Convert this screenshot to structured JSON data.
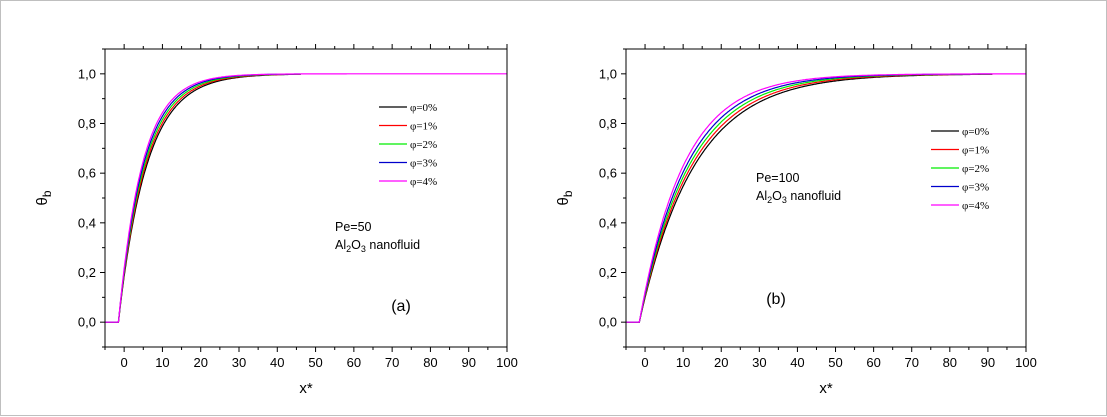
{
  "chart_data": [
    {
      "type": "line",
      "panel_label": "(a)",
      "annotation_line1": "Pe=50",
      "annotation_line2": {
        "pre": "Al",
        "sub1": "2",
        "mid": "O",
        "sub2": "3",
        "post": " nanofluid"
      },
      "xlabel": "x*",
      "ylabel_main": "θ",
      "ylabel_sub": "b",
      "xlim": [
        -5,
        100
      ],
      "ylim": [
        -0.1,
        1.1
      ],
      "x_ticks": [
        "0",
        "10",
        "20",
        "30",
        "40",
        "50",
        "60",
        "70",
        "80",
        "90",
        "100"
      ],
      "y_ticks": [
        "0,0",
        "0,2",
        "0,4",
        "0,6",
        "0,8",
        "1,0"
      ],
      "legend_position": "center-right",
      "series": [
        {
          "name": "φ=0%",
          "color": "#000000",
          "tau": 7.4,
          "x_end": 46,
          "x": [
            -5,
            -1,
            0,
            2,
            5,
            10,
            15,
            20,
            25,
            30,
            40,
            46
          ],
          "y": [
            0,
            0,
            0.127,
            0.329,
            0.546,
            0.79,
            0.902,
            0.955,
            0.979,
            0.99,
            0.998,
            1.0
          ]
        },
        {
          "name": "φ=1%",
          "color": "#ff0000",
          "tau": 7.1,
          "x_end": 46,
          "x": [
            -5,
            -1,
            0,
            2,
            5,
            10,
            15,
            20,
            25,
            30,
            40,
            46
          ],
          "y": [
            0,
            0,
            0.131,
            0.339,
            0.561,
            0.803,
            0.912,
            0.96,
            0.982,
            0.992,
            0.998,
            1.0
          ]
        },
        {
          "name": "φ=2%",
          "color": "#00ee00",
          "tau": 6.8,
          "x_end": 46,
          "x": [
            -5,
            -1,
            0,
            2,
            5,
            10,
            15,
            20,
            25,
            30,
            40,
            46
          ],
          "y": [
            0,
            0,
            0.137,
            0.352,
            0.575,
            0.816,
            0.921,
            0.966,
            0.985,
            0.994,
            0.999,
            1.0
          ]
        },
        {
          "name": "φ=3%",
          "color": "#0000cc",
          "tau": 6.5,
          "x_end": 46,
          "x": [
            -5,
            -1,
            0,
            2,
            5,
            10,
            15,
            20,
            25,
            30,
            40,
            46
          ],
          "y": [
            0,
            0,
            0.143,
            0.364,
            0.591,
            0.83,
            0.93,
            0.971,
            0.988,
            0.995,
            0.999,
            1.0
          ]
        },
        {
          "name": "φ=4%",
          "color": "#ff00ff",
          "tau": 6.2,
          "x_end": 100,
          "x": [
            -5,
            -1,
            0,
            2,
            5,
            10,
            15,
            20,
            25,
            30,
            40,
            100
          ],
          "y": [
            0,
            0,
            0.149,
            0.378,
            0.607,
            0.843,
            0.937,
            0.975,
            0.99,
            0.996,
            0.999,
            1.0
          ]
        }
      ]
    },
    {
      "type": "line",
      "panel_label": "(b)",
      "annotation_line1": "Pe=100",
      "annotation_line2": {
        "pre": "Al",
        "sub1": "2",
        "mid": "O",
        "sub2": "3",
        "post": " nanofluid"
      },
      "xlabel": "x*",
      "ylabel_main": "θ",
      "ylabel_sub": "b",
      "xlim": [
        -5,
        100
      ],
      "ylim": [
        -0.1,
        1.1
      ],
      "x_ticks": [
        "0",
        "10",
        "20",
        "30",
        "40",
        "50",
        "60",
        "70",
        "80",
        "90",
        "100"
      ],
      "y_ticks": [
        "0,0",
        "0,2",
        "0,4",
        "0,6",
        "0,8",
        "1,0"
      ],
      "legend_position": "center-right",
      "series": [
        {
          "name": "φ=0%",
          "color": "#000000",
          "tau": 14.5,
          "x_end": 91,
          "x": [
            -5,
            -1,
            0,
            5,
            10,
            20,
            30,
            40,
            50,
            60,
            80,
            91
          ],
          "y": [
            0,
            0,
            0.067,
            0.292,
            0.498,
            0.748,
            0.874,
            0.937,
            0.968,
            0.984,
            0.996,
            1.0
          ]
        },
        {
          "name": "φ=1%",
          "color": "#ff0000",
          "tau": 13.8,
          "x_end": 91,
          "x": [
            -5,
            -1,
            0,
            5,
            10,
            20,
            30,
            40,
            50,
            60,
            80,
            91
          ],
          "y": [
            0,
            0,
            0.07,
            0.304,
            0.515,
            0.765,
            0.886,
            0.945,
            0.973,
            0.987,
            0.997,
            1.0
          ]
        },
        {
          "name": "φ=2%",
          "color": "#00ee00",
          "tau": 13.1,
          "x_end": 91,
          "x": [
            -5,
            -1,
            0,
            5,
            10,
            20,
            30,
            40,
            50,
            60,
            80,
            91
          ],
          "y": [
            0,
            0,
            0.074,
            0.317,
            0.534,
            0.783,
            0.899,
            0.953,
            0.978,
            0.99,
            0.998,
            1.0
          ]
        },
        {
          "name": "φ=3%",
          "color": "#0000cc",
          "tau": 12.4,
          "x_end": 91,
          "x": [
            -5,
            -1,
            0,
            5,
            10,
            20,
            30,
            40,
            50,
            60,
            80,
            91
          ],
          "y": [
            0,
            0,
            0.077,
            0.332,
            0.553,
            0.801,
            0.911,
            0.96,
            0.982,
            0.992,
            0.998,
            1.0
          ]
        },
        {
          "name": "φ=4%",
          "color": "#ff00ff",
          "tau": 11.6,
          "x_end": 100,
          "x": [
            -5,
            -1,
            0,
            5,
            10,
            20,
            30,
            40,
            50,
            60,
            80,
            100
          ],
          "y": [
            0,
            0,
            0.083,
            0.349,
            0.578,
            0.822,
            0.925,
            0.968,
            0.986,
            0.994,
            0.999,
            1.0
          ]
        }
      ]
    }
  ]
}
